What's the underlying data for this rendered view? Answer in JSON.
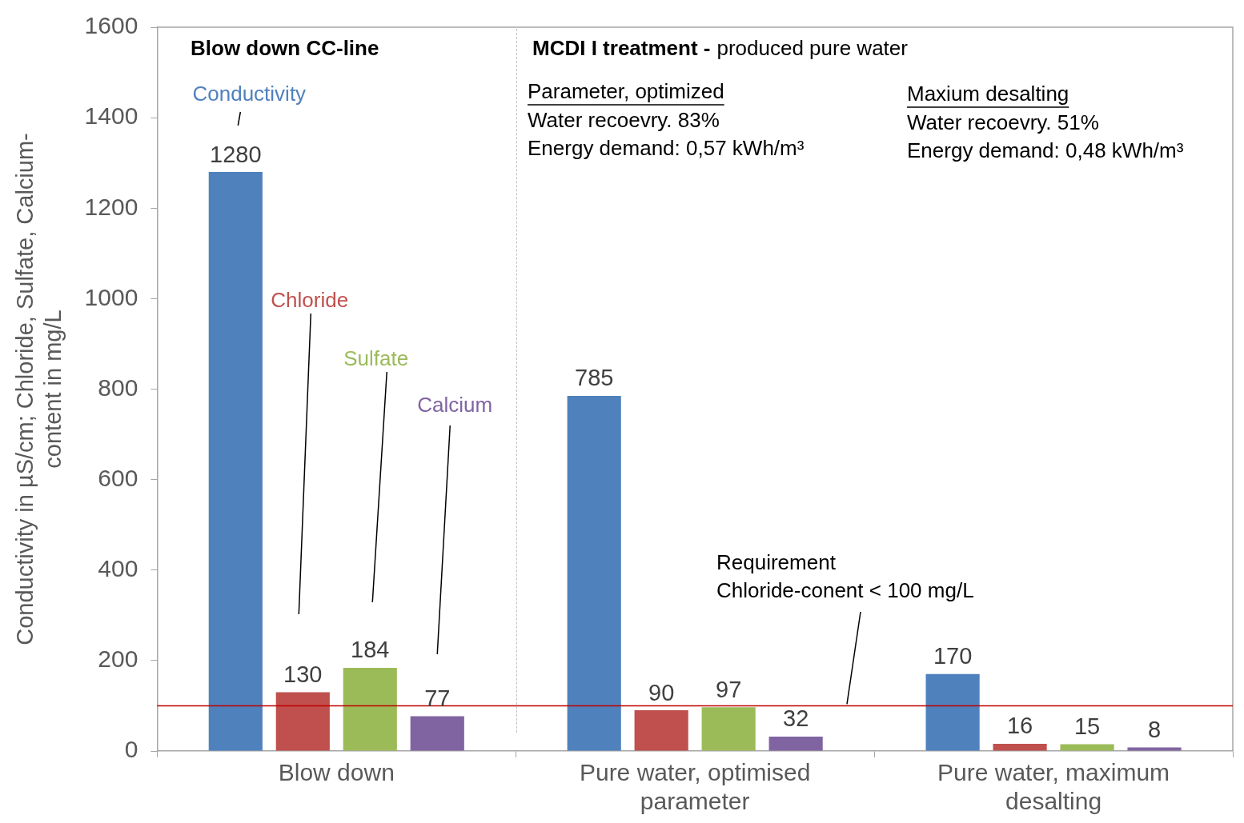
{
  "chart_data": {
    "type": "bar",
    "ylabel": "Conductivity in µS/cm; Chloride, Sulfate, Calcium-content in mg/L",
    "categories": [
      "Blow down",
      "Pure water, optimised parameter",
      "Pure water, maximum desalting"
    ],
    "series": [
      {
        "name": "Conductivity",
        "color": "#4f81bd",
        "values": [
          1280,
          785,
          170
        ]
      },
      {
        "name": "Chloride",
        "color": "#c0504d",
        "values": [
          130,
          90,
          16
        ]
      },
      {
        "name": "Sulfate",
        "color": "#9bbb59",
        "values": [
          184,
          97,
          15
        ]
      },
      {
        "name": "Calcium",
        "color": "#8064a2",
        "values": [
          77,
          32,
          8
        ]
      }
    ],
    "ylim": [
      0,
      1600
    ],
    "yticks": [
      0,
      200,
      400,
      600,
      800,
      1000,
      1200,
      1400,
      1600
    ],
    "data_labels": true,
    "legend": false,
    "grid": false,
    "ref_lines": [
      {
        "axis": "y",
        "value": 100,
        "label": "Requirement Chloride-conent < 100 mg/L",
        "color": "#c00000"
      }
    ],
    "annotations": [
      "Blow down CC-line",
      "MCDI I treatment -",
      "produced pure water",
      "Parameter, optimized",
      "Water recoevry. 83%",
      "Energy demand: 0,57 kWh/m³",
      "Maxium desalting",
      "Water recoevry. 51%",
      "Energy demand: 0,48 kWh/m³"
    ]
  }
}
